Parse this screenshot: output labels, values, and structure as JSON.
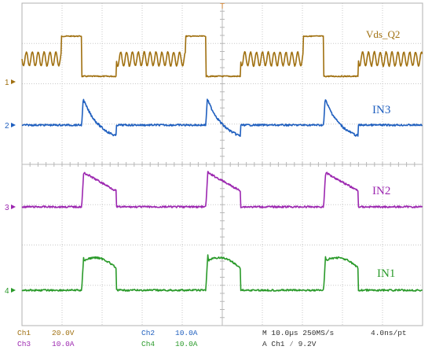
{
  "screen": {
    "colors": {
      "background": "#ffffff",
      "grid": "#c8c8c8",
      "ch1": "#a07010",
      "ch2": "#1f5fbf",
      "ch3": "#9c27b0",
      "ch4": "#2a9a2a"
    },
    "trigger_marker": "T"
  },
  "channels": [
    {
      "id": "ch1",
      "label": "Vds_Q2",
      "marker": "1"
    },
    {
      "id": "ch2",
      "label": "IN3",
      "marker": "2"
    },
    {
      "id": "ch3",
      "label": "IN2",
      "marker": "3"
    },
    {
      "id": "ch4",
      "label": "IN1",
      "marker": "4"
    }
  ],
  "status": {
    "ch1_name": "Ch1",
    "ch1_scale": "20.0V",
    "ch3_name": "Ch3",
    "ch3_scale": "10.0A",
    "ch2_name": "Ch2",
    "ch2_scale": "10.0A",
    "ch4_name": "Ch4",
    "ch4_scale": "10.0A",
    "timebase": "M 10.0µs 250MS/s",
    "resolution": "4.0ns/pt",
    "trigger": "A  Ch1  ∕  9.2V"
  }
}
